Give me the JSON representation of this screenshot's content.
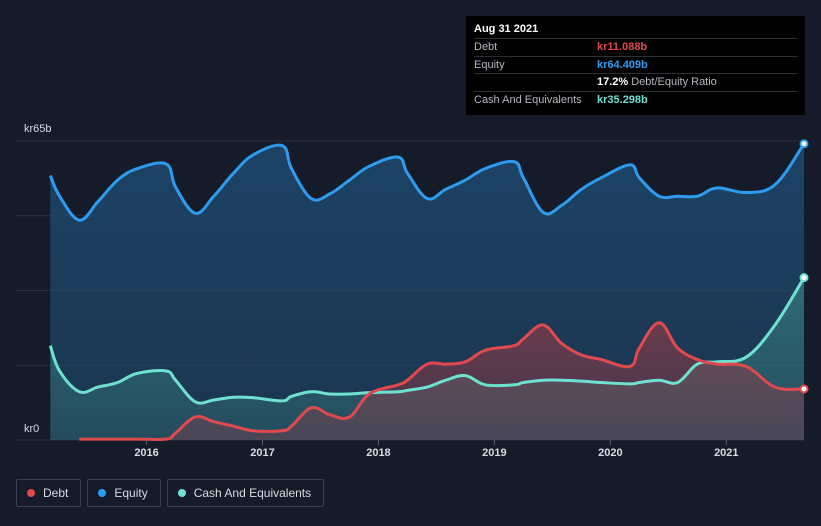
{
  "tooltip": {
    "date": "Aug 31 2021",
    "rows": [
      {
        "label": "Debt",
        "value": "kr11.088b"
      },
      {
        "label": "Equity",
        "value": "kr64.409b"
      },
      {
        "label": "",
        "value": "17.2%",
        "sub": "Debt/Equity Ratio"
      },
      {
        "label": "Cash And Equivalents",
        "value": "kr35.298b"
      }
    ]
  },
  "legend": [
    {
      "label": "Debt",
      "color": "#e04a4f"
    },
    {
      "label": "Equity",
      "color": "#2d9cf0"
    },
    {
      "label": "Cash And Equivalents",
      "color": "#6fe1d1"
    }
  ],
  "chart_data": {
    "type": "area",
    "y_top_label": "kr65b",
    "y_bottom_label": "kr0",
    "ylim": [
      0,
      65
    ],
    "xlim": [
      2015.15,
      2021.67
    ],
    "x_ticks": [
      "2016",
      "2017",
      "2018",
      "2019",
      "2020",
      "2021"
    ],
    "grid": true,
    "legend_position": "bottom-left",
    "series": [
      {
        "name": "Equity",
        "color": "#2d9cf0",
        "points": [
          [
            2015.17,
            57.5
          ],
          [
            2015.25,
            53
          ],
          [
            2015.42,
            47.8
          ],
          [
            2015.58,
            51.8
          ],
          [
            2015.75,
            56.5
          ],
          [
            2015.92,
            59
          ],
          [
            2016.17,
            60
          ],
          [
            2016.25,
            55
          ],
          [
            2016.42,
            49.3
          ],
          [
            2016.58,
            53
          ],
          [
            2016.75,
            58
          ],
          [
            2016.92,
            62
          ],
          [
            2017.17,
            64
          ],
          [
            2017.25,
            59
          ],
          [
            2017.42,
            52.5
          ],
          [
            2017.58,
            53.5
          ],
          [
            2017.75,
            56.5
          ],
          [
            2017.92,
            59.5
          ],
          [
            2018.17,
            61.5
          ],
          [
            2018.25,
            58
          ],
          [
            2018.42,
            52.5
          ],
          [
            2018.58,
            54.5
          ],
          [
            2018.75,
            56.5
          ],
          [
            2018.92,
            59
          ],
          [
            2019.17,
            60.5
          ],
          [
            2019.25,
            57
          ],
          [
            2019.42,
            49.5
          ],
          [
            2019.58,
            51
          ],
          [
            2019.75,
            54.5
          ],
          [
            2019.92,
            57
          ],
          [
            2020.17,
            59.8
          ],
          [
            2020.25,
            57
          ],
          [
            2020.42,
            53
          ],
          [
            2020.58,
            53
          ],
          [
            2020.75,
            53
          ],
          [
            2020.92,
            54.8
          ],
          [
            2021.17,
            53.8
          ],
          [
            2021.42,
            55.5
          ],
          [
            2021.67,
            64.4
          ]
        ]
      },
      {
        "name": "Cash And Equivalents",
        "color": "#6fe1d1",
        "points": [
          [
            2015.17,
            20.5
          ],
          [
            2015.25,
            15
          ],
          [
            2015.42,
            10.5
          ],
          [
            2015.58,
            11.5
          ],
          [
            2015.75,
            12.5
          ],
          [
            2015.92,
            14.5
          ],
          [
            2016.17,
            15
          ],
          [
            2016.25,
            13
          ],
          [
            2016.42,
            8.3
          ],
          [
            2016.58,
            8.7
          ],
          [
            2016.75,
            9.3
          ],
          [
            2016.92,
            9.2
          ],
          [
            2017.17,
            8.5
          ],
          [
            2017.25,
            9.5
          ],
          [
            2017.42,
            10.5
          ],
          [
            2017.58,
            10
          ],
          [
            2017.75,
            10
          ],
          [
            2017.92,
            10.3
          ],
          [
            2018.17,
            10.5
          ],
          [
            2018.25,
            10.8
          ],
          [
            2018.42,
            11.5
          ],
          [
            2018.58,
            13
          ],
          [
            2018.75,
            14
          ],
          [
            2018.92,
            12
          ],
          [
            2019.17,
            12
          ],
          [
            2019.25,
            12.5
          ],
          [
            2019.42,
            13
          ],
          [
            2019.58,
            13
          ],
          [
            2019.75,
            12.8
          ],
          [
            2019.92,
            12.5
          ],
          [
            2020.17,
            12.2
          ],
          [
            2020.25,
            12.5
          ],
          [
            2020.42,
            13
          ],
          [
            2020.58,
            12.5
          ],
          [
            2020.75,
            16.5
          ],
          [
            2020.92,
            17
          ],
          [
            2021.17,
            18
          ],
          [
            2021.42,
            25
          ],
          [
            2021.67,
            35.3
          ]
        ]
      },
      {
        "name": "Debt",
        "color": "#e04a4f",
        "points": [
          [
            2015.42,
            0.2
          ],
          [
            2015.58,
            0.2
          ],
          [
            2015.75,
            0.2
          ],
          [
            2015.92,
            0.2
          ],
          [
            2016.17,
            0.2
          ],
          [
            2016.25,
            1.5
          ],
          [
            2016.42,
            5
          ],
          [
            2016.58,
            4
          ],
          [
            2016.75,
            3
          ],
          [
            2016.92,
            2
          ],
          [
            2017.17,
            2
          ],
          [
            2017.25,
            3
          ],
          [
            2017.42,
            7
          ],
          [
            2017.58,
            5.5
          ],
          [
            2017.75,
            5
          ],
          [
            2017.92,
            10
          ],
          [
            2018.17,
            12
          ],
          [
            2018.25,
            13
          ],
          [
            2018.42,
            16.5
          ],
          [
            2018.58,
            16.5
          ],
          [
            2018.75,
            17
          ],
          [
            2018.92,
            19.5
          ],
          [
            2019.17,
            20.5
          ],
          [
            2019.25,
            22
          ],
          [
            2019.42,
            25
          ],
          [
            2019.58,
            21
          ],
          [
            2019.75,
            18.5
          ],
          [
            2019.92,
            17.5
          ],
          [
            2020.17,
            16
          ],
          [
            2020.25,
            20
          ],
          [
            2020.42,
            25.5
          ],
          [
            2020.58,
            20
          ],
          [
            2020.75,
            17.5
          ],
          [
            2020.92,
            16.5
          ],
          [
            2021.17,
            16
          ],
          [
            2021.42,
            11.5
          ],
          [
            2021.67,
            11.1
          ]
        ]
      }
    ]
  }
}
